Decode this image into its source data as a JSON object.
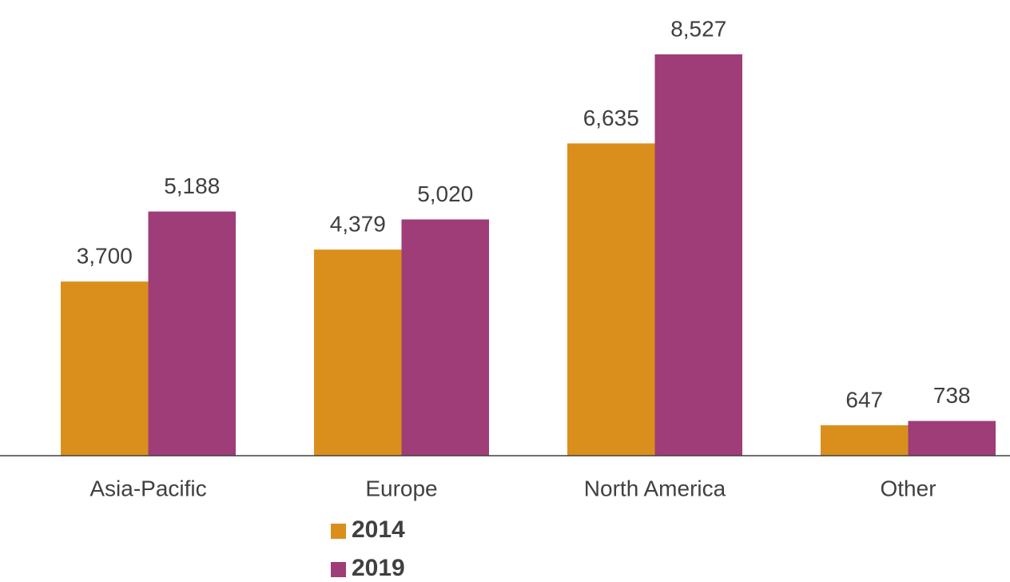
{
  "chart_data": {
    "type": "bar",
    "categories": [
      "Asia-Pacific",
      "Europe",
      "North America",
      "Other"
    ],
    "series": [
      {
        "name": "2014",
        "color": "#da8f1c",
        "values": [
          3700,
          4379,
          6635,
          647
        ],
        "value_labels": [
          "3,700",
          "4,379",
          "6,635",
          "647"
        ]
      },
      {
        "name": "2019",
        "color": "#9e3d78",
        "values": [
          5188,
          5020,
          8527,
          738
        ],
        "value_labels": [
          "5,188",
          "5,020",
          "8,527",
          "738"
        ]
      }
    ],
    "grid": false,
    "legend": "bottom"
  }
}
